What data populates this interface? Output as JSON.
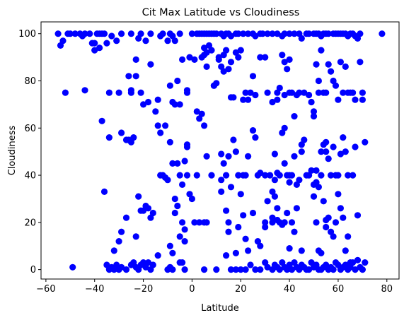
{
  "chart_data": {
    "type": "scatter",
    "title": "Cit Max Latitude vs Cloudiness",
    "xlabel": "Latitude",
    "ylabel": "Cloudiness",
    "xlim": [
      -62,
      85
    ],
    "ylim": [
      -4,
      105
    ],
    "xticks": [
      -60,
      -40,
      -20,
      0,
      20,
      40,
      60,
      80
    ],
    "yticks": [
      0,
      20,
      40,
      60,
      80,
      100
    ],
    "grid": false,
    "marker_color": "#0000ff",
    "points": [
      [
        -55,
        100
      ],
      [
        -54,
        95
      ],
      [
        -53,
        97
      ],
      [
        -51,
        100
      ],
      [
        -50,
        100
      ],
      [
        -48,
        100
      ],
      [
        -46,
        100
      ],
      [
        -45,
        99
      ],
      [
        -44,
        100
      ],
      [
        -42,
        100
      ],
      [
        -41,
        96
      ],
      [
        -40,
        96
      ],
      [
        -39,
        100
      ],
      [
        -38,
        100
      ],
      [
        -37,
        100
      ],
      [
        -36,
        100
      ],
      [
        -35,
        96
      ],
      [
        -33,
        99
      ],
      [
        -31,
        97
      ],
      [
        -29,
        100
      ],
      [
        -25,
        100
      ],
      [
        -22,
        98
      ],
      [
        -21,
        100
      ],
      [
        -19,
        97
      ],
      [
        -17,
        100
      ],
      [
        -13,
        99
      ],
      [
        -12,
        100
      ],
      [
        -9,
        100
      ],
      [
        -8,
        99
      ],
      [
        -7,
        97
      ],
      [
        -5,
        100
      ],
      [
        0,
        100
      ],
      [
        2,
        100
      ],
      [
        3,
        100
      ],
      [
        4,
        100
      ],
      [
        5,
        100
      ],
      [
        6,
        100
      ],
      [
        7,
        100
      ],
      [
        8,
        100
      ],
      [
        9,
        100
      ],
      [
        10,
        100
      ],
      [
        12,
        100
      ],
      [
        13,
        99
      ],
      [
        14,
        100
      ],
      [
        15,
        100
      ],
      [
        16,
        99
      ],
      [
        18,
        100
      ],
      [
        19,
        100
      ],
      [
        21,
        100
      ],
      [
        23,
        100
      ],
      [
        25,
        100
      ],
      [
        26,
        99
      ],
      [
        28,
        100
      ],
      [
        29,
        100
      ],
      [
        31,
        100
      ],
      [
        33,
        100
      ],
      [
        35,
        100
      ],
      [
        37,
        99
      ],
      [
        38,
        100
      ],
      [
        40,
        100
      ],
      [
        42,
        100
      ],
      [
        44,
        100
      ],
      [
        45,
        98
      ],
      [
        47,
        100
      ],
      [
        48,
        100
      ],
      [
        50,
        100
      ],
      [
        51,
        100
      ],
      [
        52,
        100
      ],
      [
        53,
        99
      ],
      [
        54,
        100
      ],
      [
        55,
        100
      ],
      [
        56,
        100
      ],
      [
        58,
        100
      ],
      [
        59,
        100
      ],
      [
        60,
        100
      ],
      [
        61,
        100
      ],
      [
        62,
        100
      ],
      [
        63,
        100
      ],
      [
        64,
        99
      ],
      [
        65,
        100
      ],
      [
        66,
        100
      ],
      [
        67,
        99
      ],
      [
        68,
        98
      ],
      [
        69,
        100
      ],
      [
        78,
        100
      ],
      [
        -52,
        75
      ],
      [
        -44,
        76
      ],
      [
        -40,
        93
      ],
      [
        -38,
        94
      ],
      [
        -34,
        75
      ],
      [
        -30,
        75
      ],
      [
        -26,
        82
      ],
      [
        -25,
        76
      ],
      [
        -25,
        75
      ],
      [
        -23,
        89
      ],
      [
        -23,
        82
      ],
      [
        -21,
        75
      ],
      [
        -20,
        70
      ],
      [
        -18,
        71
      ],
      [
        -17,
        87
      ],
      [
        -15,
        67
      ],
      [
        -14,
        72
      ],
      [
        -14,
        61
      ],
      [
        -10,
        97
      ],
      [
        -9,
        78
      ],
      [
        -8,
        71
      ],
      [
        -7,
        70
      ],
      [
        -6,
        80
      ],
      [
        -5,
        70
      ],
      [
        -4,
        89
      ],
      [
        -2,
        76
      ],
      [
        -2,
        75
      ],
      [
        -1,
        90
      ],
      [
        1,
        89
      ],
      [
        2,
        67
      ],
      [
        3,
        64
      ],
      [
        4,
        66
      ],
      [
        4,
        90
      ],
      [
        5,
        91
      ],
      [
        5,
        94
      ],
      [
        6,
        92
      ],
      [
        6,
        86
      ],
      [
        7,
        95
      ],
      [
        8,
        93
      ],
      [
        9,
        78
      ],
      [
        10,
        79
      ],
      [
        11,
        90
      ],
      [
        11,
        89
      ],
      [
        12,
        86
      ],
      [
        13,
        84
      ],
      [
        13,
        91
      ],
      [
        14,
        93
      ],
      [
        15,
        85
      ],
      [
        16,
        88
      ],
      [
        16,
        73
      ],
      [
        17,
        73
      ],
      [
        18,
        92
      ],
      [
        19,
        90
      ],
      [
        20,
        93
      ],
      [
        21,
        72
      ],
      [
        22,
        75
      ],
      [
        23,
        72
      ],
      [
        24,
        75
      ],
      [
        25,
        82
      ],
      [
        26,
        74
      ],
      [
        28,
        90
      ],
      [
        30,
        90
      ],
      [
        31,
        75
      ],
      [
        33,
        71
      ],
      [
        35,
        75
      ],
      [
        35,
        72
      ],
      [
        36,
        77
      ],
      [
        37,
        91
      ],
      [
        38,
        74
      ],
      [
        38,
        88
      ],
      [
        39,
        85
      ],
      [
        40,
        89
      ],
      [
        40,
        75
      ],
      [
        41,
        75
      ],
      [
        42,
        65
      ],
      [
        43,
        74
      ],
      [
        44,
        75
      ],
      [
        46,
        75
      ],
      [
        48,
        74
      ],
      [
        49,
        71
      ],
      [
        50,
        67
      ],
      [
        50,
        65
      ],
      [
        51,
        87
      ],
      [
        52,
        80
      ],
      [
        52,
        75
      ],
      [
        53,
        93
      ],
      [
        54,
        75
      ],
      [
        55,
        75
      ],
      [
        56,
        87
      ],
      [
        57,
        84
      ],
      [
        58,
        80
      ],
      [
        59,
        78
      ],
      [
        60,
        72
      ],
      [
        61,
        88
      ],
      [
        62,
        75
      ],
      [
        63,
        86
      ],
      [
        64,
        75
      ],
      [
        65,
        75
      ],
      [
        66,
        75
      ],
      [
        67,
        72
      ],
      [
        69,
        88
      ],
      [
        70,
        72
      ],
      [
        70,
        75
      ],
      [
        -29,
        58
      ],
      [
        -27,
        55
      ],
      [
        -26,
        55
      ],
      [
        -25,
        54
      ],
      [
        -24,
        56
      ],
      [
        -13,
        58
      ],
      [
        -11,
        61
      ],
      [
        -9,
        54
      ],
      [
        -8,
        45
      ],
      [
        -7,
        30
      ],
      [
        -6,
        45
      ],
      [
        -5,
        40
      ],
      [
        -4,
        36
      ],
      [
        -3,
        46
      ],
      [
        -2,
        53
      ],
      [
        -2,
        52
      ],
      [
        -1,
        32
      ],
      [
        0,
        30
      ],
      [
        2,
        40
      ],
      [
        5,
        61
      ],
      [
        6,
        48
      ],
      [
        8,
        40
      ],
      [
        9,
        78
      ],
      [
        12,
        49
      ],
      [
        12,
        38
      ],
      [
        13,
        45
      ],
      [
        14,
        40
      ],
      [
        15,
        48
      ],
      [
        16,
        35
      ],
      [
        17,
        55
      ],
      [
        18,
        50
      ],
      [
        19,
        40
      ],
      [
        20,
        32
      ],
      [
        21,
        40
      ],
      [
        22,
        40
      ],
      [
        23,
        48
      ],
      [
        25,
        59
      ],
      [
        26,
        56
      ],
      [
        27,
        40
      ],
      [
        28,
        41
      ],
      [
        30,
        40
      ],
      [
        32,
        40
      ],
      [
        33,
        33
      ],
      [
        34,
        49
      ],
      [
        34,
        38
      ],
      [
        35,
        41
      ],
      [
        36,
        40
      ],
      [
        37,
        58
      ],
      [
        38,
        60
      ],
      [
        38,
        45
      ],
      [
        39,
        40
      ],
      [
        40,
        37
      ],
      [
        40,
        40
      ],
      [
        41,
        40
      ],
      [
        42,
        48
      ],
      [
        43,
        36
      ],
      [
        44,
        38
      ],
      [
        45,
        53
      ],
      [
        45,
        50
      ],
      [
        46,
        55
      ],
      [
        47,
        40
      ],
      [
        48,
        40
      ],
      [
        49,
        42
      ],
      [
        50,
        36
      ],
      [
        51,
        37
      ],
      [
        51,
        42
      ],
      [
        52,
        35
      ],
      [
        53,
        50
      ],
      [
        53,
        40
      ],
      [
        54,
        53
      ],
      [
        55,
        54
      ],
      [
        55,
        50
      ],
      [
        56,
        47
      ],
      [
        57,
        40
      ],
      [
        58,
        52
      ],
      [
        59,
        40
      ],
      [
        60,
        40
      ],
      [
        61,
        49
      ],
      [
        62,
        56
      ],
      [
        63,
        50
      ],
      [
        64,
        40
      ],
      [
        66,
        40
      ],
      [
        67,
        52
      ],
      [
        71,
        54
      ],
      [
        -37,
        63
      ],
      [
        -36,
        33
      ],
      [
        -34,
        56
      ],
      [
        -32,
        8
      ],
      [
        -30,
        12
      ],
      [
        -29,
        16
      ],
      [
        -27,
        22
      ],
      [
        -23,
        14
      ],
      [
        -22,
        31
      ],
      [
        -21,
        25
      ],
      [
        -20,
        25
      ],
      [
        -19,
        27
      ],
      [
        -18,
        26
      ],
      [
        -17,
        22
      ],
      [
        -16,
        24
      ],
      [
        -14,
        6
      ],
      [
        -13,
        40
      ],
      [
        -12,
        40
      ],
      [
        -11,
        39
      ],
      [
        -10,
        38
      ],
      [
        -9,
        10
      ],
      [
        -8,
        7
      ],
      [
        -7,
        24
      ],
      [
        -6,
        27
      ],
      [
        -5,
        14
      ],
      [
        -4,
        20
      ],
      [
        -3,
        12
      ],
      [
        -3,
        17
      ],
      [
        -2,
        40
      ],
      [
        1,
        20
      ],
      [
        3,
        20
      ],
      [
        5,
        20
      ],
      [
        6,
        20
      ],
      [
        12,
        33
      ],
      [
        14,
        25
      ],
      [
        15,
        16
      ],
      [
        15,
        20
      ],
      [
        18,
        7
      ],
      [
        19,
        18
      ],
      [
        21,
        23
      ],
      [
        22,
        13
      ],
      [
        23,
        8
      ],
      [
        25,
        24
      ],
      [
        27,
        12
      ],
      [
        28,
        10
      ],
      [
        30,
        20
      ],
      [
        30,
        18
      ],
      [
        31,
        29
      ],
      [
        33,
        20
      ],
      [
        33,
        22
      ],
      [
        34,
        31
      ],
      [
        35,
        21
      ],
      [
        35,
        26
      ],
      [
        36,
        20
      ],
      [
        37,
        19
      ],
      [
        38,
        20
      ],
      [
        39,
        24
      ],
      [
        40,
        9
      ],
      [
        41,
        20
      ],
      [
        42,
        16
      ],
      [
        43,
        26
      ],
      [
        45,
        8
      ],
      [
        50,
        31
      ],
      [
        51,
        20
      ],
      [
        52,
        8
      ],
      [
        53,
        7
      ],
      [
        54,
        29
      ],
      [
        55,
        18
      ],
      [
        55,
        21
      ],
      [
        56,
        22
      ],
      [
        57,
        16
      ],
      [
        58,
        14
      ],
      [
        59,
        20
      ],
      [
        60,
        32
      ],
      [
        61,
        26
      ],
      [
        62,
        22
      ],
      [
        63,
        8
      ],
      [
        64,
        14
      ],
      [
        65,
        3
      ],
      [
        68,
        23
      ],
      [
        -49,
        1
      ],
      [
        -35,
        2
      ],
      [
        -34,
        0
      ],
      [
        -33,
        1
      ],
      [
        -32,
        0
      ],
      [
        -31,
        2
      ],
      [
        -30,
        0
      ],
      [
        -29,
        1
      ],
      [
        -27,
        0
      ],
      [
        -25,
        2
      ],
      [
        -24,
        3
      ],
      [
        -23,
        1
      ],
      [
        -22,
        0
      ],
      [
        -21,
        2
      ],
      [
        -20,
        3
      ],
      [
        -19,
        1
      ],
      [
        -18,
        3
      ],
      [
        -17,
        0
      ],
      [
        -16,
        2
      ],
      [
        -10,
        0
      ],
      [
        -9,
        1
      ],
      [
        -8,
        0
      ],
      [
        -5,
        3
      ],
      [
        -4,
        3
      ],
      [
        -3,
        0
      ],
      [
        5,
        0
      ],
      [
        10,
        0
      ],
      [
        14,
        6
      ],
      [
        16,
        0
      ],
      [
        18,
        0
      ],
      [
        20,
        0
      ],
      [
        22,
        0
      ],
      [
        24,
        2
      ],
      [
        26,
        0
      ],
      [
        28,
        0
      ],
      [
        30,
        3
      ],
      [
        31,
        1
      ],
      [
        33,
        0
      ],
      [
        34,
        2
      ],
      [
        35,
        1
      ],
      [
        36,
        0
      ],
      [
        37,
        3
      ],
      [
        38,
        1
      ],
      [
        39,
        0
      ],
      [
        40,
        2
      ],
      [
        41,
        0
      ],
      [
        42,
        3
      ],
      [
        43,
        1
      ],
      [
        44,
        0
      ],
      [
        45,
        2
      ],
      [
        46,
        1
      ],
      [
        47,
        0
      ],
      [
        48,
        0
      ],
      [
        49,
        3
      ],
      [
        50,
        1
      ],
      [
        51,
        2
      ],
      [
        52,
        0
      ],
      [
        53,
        0
      ],
      [
        54,
        1
      ],
      [
        55,
        2
      ],
      [
        56,
        0
      ],
      [
        57,
        1
      ],
      [
        58,
        0
      ],
      [
        59,
        3
      ],
      [
        60,
        2
      ],
      [
        61,
        0
      ],
      [
        62,
        1
      ],
      [
        63,
        2
      ],
      [
        64,
        0
      ],
      [
        65,
        1
      ],
      [
        66,
        3
      ],
      [
        67,
        0
      ],
      [
        68,
        4
      ],
      [
        69,
        1
      ],
      [
        70,
        0
      ],
      [
        71,
        3
      ]
    ]
  }
}
